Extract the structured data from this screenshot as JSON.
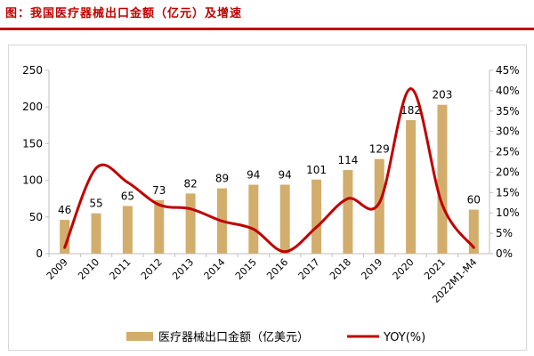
{
  "figure": {
    "title": "图：我国医疗器械出口金额（亿元）及增速"
  },
  "colors": {
    "title": "#c00000",
    "bar": "#d2ad6c",
    "line": "#c00000",
    "axis": "#bfbfbf",
    "text": "#000000"
  },
  "chart_data": {
    "type": "bar",
    "categories": [
      "2009",
      "2010",
      "2011",
      "2012",
      "2013",
      "2014",
      "2015",
      "2016",
      "2017",
      "2018",
      "2019",
      "2020",
      "2021",
      "2022M1-M4"
    ],
    "series": [
      {
        "name": "医疗器械出口金额（亿美元）",
        "type": "bar",
        "axis": "left",
        "values": [
          46,
          55,
          65,
          73,
          82,
          89,
          94,
          94,
          101,
          114,
          129,
          182,
          203,
          60
        ],
        "labels": [
          "46",
          "55",
          "65",
          "73",
          "82",
          "89",
          "94",
          "94",
          "101",
          "114",
          "129",
          "182",
          "203",
          "60"
        ]
      },
      {
        "name": "YOY(%)",
        "type": "line",
        "axis": "right",
        "values": [
          1.5,
          21.0,
          17.5,
          12.0,
          11.0,
          8.0,
          6.0,
          0.5,
          6.5,
          13.5,
          12.5,
          40.5,
          12.0,
          1.5
        ]
      }
    ],
    "left_axis": {
      "ylim": [
        0,
        250
      ],
      "ticks": [
        "0",
        "50",
        "100",
        "150",
        "200",
        "250"
      ]
    },
    "right_axis": {
      "ylim": [
        0,
        45
      ],
      "ticks": [
        "0%",
        "5%",
        "10%",
        "15%",
        "20%",
        "25%",
        "30%",
        "35%",
        "40%",
        "45%"
      ]
    },
    "grid": false,
    "legend": {
      "position": "bottom",
      "entries": [
        "医疗器械出口金额（亿美元）",
        "YOY(%)"
      ]
    }
  }
}
